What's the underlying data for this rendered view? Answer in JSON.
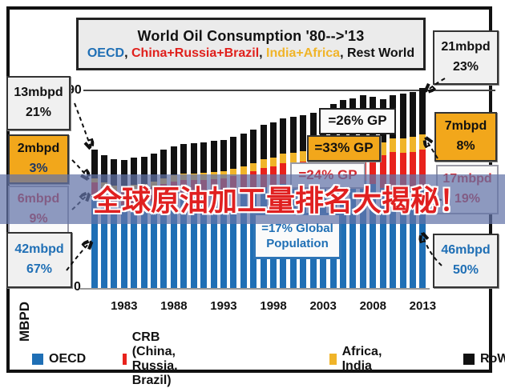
{
  "title": {
    "line1": "World Oil Consumption '80-->'13",
    "line2_parts": [
      {
        "text": "OECD",
        "color": "#1F6FB5"
      },
      {
        "text": ", ",
        "color": "#111111"
      },
      {
        "text": "China+Russia+Brazil",
        "color": "#E0201C"
      },
      {
        "text": ", ",
        "color": "#111111"
      },
      {
        "text": "India+Africa",
        "color": "#F0B429"
      },
      {
        "text": ", ",
        "color": "#111111"
      },
      {
        "text": "Rest World",
        "color": "#111111"
      }
    ]
  },
  "overlay_banner": {
    "text": "全球原油加工量排名大揭秘！",
    "text_color": "#E02020",
    "band_color": "rgba(98,115,167,0.72)"
  },
  "y_axis": {
    "top_label": "90",
    "bottom_label": "0",
    "axis_title": "MBPD"
  },
  "x_axis": {
    "ticks": [
      "1983",
      "1988",
      "1993",
      "1998",
      "2003",
      "2008",
      "2013"
    ]
  },
  "callouts": {
    "left_1980": [
      {
        "value": "13mbpd",
        "pct": "21%",
        "color": "#111111"
      },
      {
        "value": "2mbpd",
        "pct": "3%",
        "color": "#1F3864"
      },
      {
        "value": "6mbpd",
        "pct": "9%",
        "color": "#D4262C"
      },
      {
        "value": "42mbpd",
        "pct": "67%",
        "color": "#1F6FB5"
      }
    ],
    "right_2013": [
      {
        "value": "21mbpd",
        "pct": "23%",
        "color": "#111111"
      },
      {
        "value": "7mbpd",
        "pct": "8%",
        "color": "#111111"
      },
      {
        "value": "17mbpd",
        "pct": "19%",
        "color": "#D4262C"
      },
      {
        "value": "46mbpd",
        "pct": "50%",
        "color": "#1F6FB5"
      }
    ]
  },
  "gp_notes": [
    {
      "text": "=26% GP",
      "color": "#111111"
    },
    {
      "text": "=33% GP",
      "color": "#111111"
    },
    {
      "text": "=24% GP",
      "color": "#D4262C"
    },
    {
      "text": "=17% Global Population",
      "color": "#1F5FA8"
    }
  ],
  "legend": [
    {
      "label": "OECD",
      "color": "#1F6FB5"
    },
    {
      "label": "CRB (China, Russia, Brazil)",
      "color": "#E8221C"
    },
    {
      "label": "Africa, India",
      "color": "#F0B429"
    },
    {
      "label": "RoW",
      "color": "#111111"
    }
  ],
  "chart_data": {
    "type": "bar",
    "stacked": true,
    "title": "World Oil Consumption '80-->'13",
    "ylabel": "MBPD",
    "ylim": [
      0,
      95
    ],
    "gridline_value": 90,
    "legend_position": "bottom",
    "x": [
      1980,
      1981,
      1982,
      1983,
      1984,
      1985,
      1986,
      1987,
      1988,
      1989,
      1990,
      1991,
      1992,
      1993,
      1994,
      1995,
      1996,
      1997,
      1998,
      1999,
      2000,
      2001,
      2002,
      2003,
      2004,
      2005,
      2006,
      2007,
      2008,
      2009,
      2010,
      2011,
      2012,
      2013
    ],
    "series": [
      {
        "name": "OECD",
        "color": "#1F6FB5",
        "values": [
          42,
          40,
          38.5,
          38,
          38.5,
          38.5,
          39.5,
          40.5,
          41.5,
          42,
          42,
          42,
          42.5,
          42.5,
          43.5,
          44,
          45,
          46,
          46.5,
          47.5,
          47.5,
          47.5,
          47.5,
          48,
          49,
          49.5,
          49,
          49,
          47.5,
          45.5,
          46,
          45.5,
          45.5,
          46
        ]
      },
      {
        "name": "CRB (China, Russia, Brazil)",
        "color": "#E8221C",
        "values": [
          6,
          6,
          6,
          6,
          6.2,
          6.3,
          6.5,
          6.7,
          7,
          7.2,
          7.2,
          7.3,
          7.2,
          7.3,
          7.5,
          7.8,
          8.2,
          8.7,
          9,
          9.4,
          9.8,
          10.2,
          10.7,
          11.3,
          12.2,
          12.8,
          13.4,
          14.1,
          14.6,
          15,
          15.8,
          16.2,
          16.6,
          17
        ]
      },
      {
        "name": "Africa, India",
        "color": "#F0B429",
        "values": [
          2,
          2.1,
          2.2,
          2.3,
          2.4,
          2.5,
          2.6,
          2.7,
          2.8,
          2.9,
          3,
          3.1,
          3.2,
          3.3,
          3.4,
          3.5,
          3.7,
          3.9,
          4,
          4.2,
          4.3,
          4.5,
          4.6,
          4.8,
          5,
          5.2,
          5.4,
          5.6,
          5.8,
          6,
          6.3,
          6.5,
          6.7,
          7
        ]
      },
      {
        "name": "RoW",
        "color": "#111111",
        "values": [
          13,
          12.5,
          12,
          12,
          12.2,
          12.4,
          12.7,
          13,
          13.3,
          13.6,
          13.8,
          14,
          14.2,
          14.4,
          14.6,
          14.9,
          15.2,
          15.6,
          15.8,
          16.1,
          16.4,
          16.6,
          16.9,
          17.3,
          17.8,
          18.2,
          18.6,
          19,
          19.2,
          19.4,
          19.9,
          20.3,
          20.6,
          21
        ]
      }
    ],
    "endpoint_annotations": {
      "1980": {
        "OECD": "42mbpd (67%)",
        "CRB": "6mbpd (9%)",
        "Africa+India": "2mbpd (3%)",
        "RoW": "13mbpd (21%)"
      },
      "2013": {
        "OECD": "46mbpd (50%)",
        "CRB": "17mbpd (19%)",
        "Africa+India": "7mbpd (8%)",
        "RoW": "21mbpd (23%)"
      }
    }
  }
}
